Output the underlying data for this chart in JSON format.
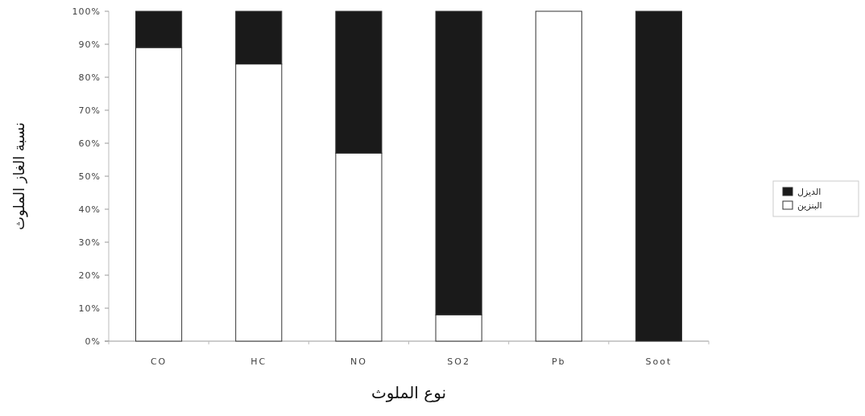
{
  "chart_data": {
    "type": "bar",
    "stacked": true,
    "xlabel": "نوع الملوث",
    "ylabel": "نسبة الغاز الملوث",
    "categories": [
      "CO",
      "HC",
      "NO",
      "SO2",
      "Pb",
      "Soot"
    ],
    "series": [
      {
        "name": "البنزين",
        "color": "#ffffff",
        "values": [
          89,
          84,
          57,
          8,
          100,
          0
        ]
      },
      {
        "name": "الديزل",
        "color": "#1a1a1a",
        "values": [
          11,
          16,
          43,
          92,
          0,
          100
        ]
      }
    ],
    "ylim": [
      0,
      100
    ],
    "yticks": [
      {
        "value": 0,
        "label": "0%"
      },
      {
        "value": 10,
        "label": "10%"
      },
      {
        "value": 20,
        "label": "20%"
      },
      {
        "value": 30,
        "label": "30%"
      },
      {
        "value": 40,
        "label": "40%"
      },
      {
        "value": 50,
        "label": "50%"
      },
      {
        "value": 60,
        "label": "60%"
      },
      {
        "value": 70,
        "label": "70%"
      },
      {
        "value": 80,
        "label": "80%"
      },
      {
        "value": 90,
        "label": "90%"
      },
      {
        "value": 100,
        "label": "100%"
      }
    ],
    "grid": false,
    "legend": "right"
  }
}
